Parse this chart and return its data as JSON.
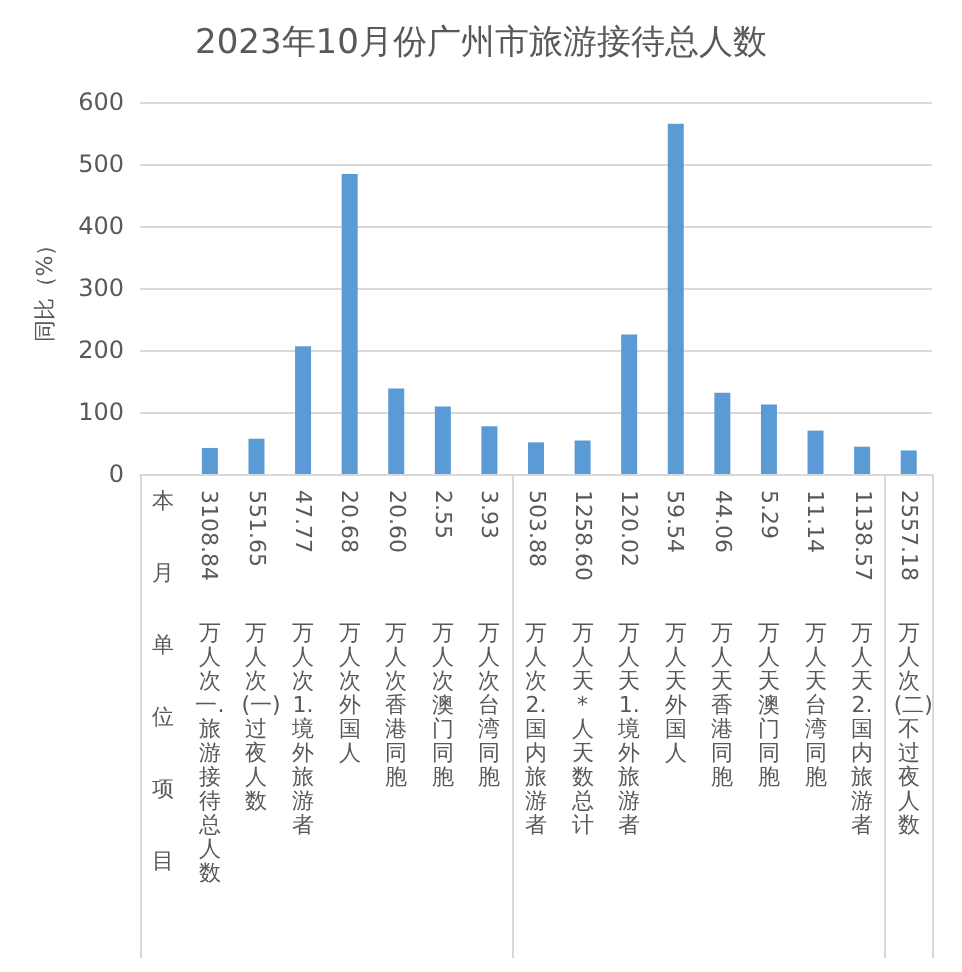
{
  "chart_data": {
    "type": "bar",
    "title": "2023年10月份广州市旅游接待总人数",
    "ylabel": "同比（%）",
    "categories": [
      "本月单位项目",
      "3108.84\n万人次一.旅游接待总人数",
      "551.65\n万人次(一)过夜人数",
      "47.77\n万人次1.境外旅游者",
      "20.68\n万人次外国人",
      "20.60\n万人次香港同胞",
      "2.55\n万人次澳门同胞",
      "3.93\n万人次台湾同胞",
      "503.88\n万人次2.国内旅游者",
      "1258.60\n万人天*人天数总计",
      "120.02\n万人天1.境外旅游者",
      "59.54\n万人天外国人",
      "44.06\n万人天香港同胞",
      "5.29\n万人天澳门同胞",
      "11.14\n万人天台湾同胞",
      "1138.57\n万人天2.国内旅游者",
      "2557.18\n万人次(二)不过夜人数"
    ],
    "values": [
      null,
      42,
      57,
      206,
      484,
      138,
      109,
      77,
      51,
      54,
      225,
      565,
      131,
      112,
      70,
      44,
      38
    ],
    "color": "#5b9bd5",
    "ylim": [
      0,
      600
    ],
    "yticks": [
      0,
      100,
      200,
      300,
      400,
      500,
      600
    ],
    "grid": "y"
  }
}
